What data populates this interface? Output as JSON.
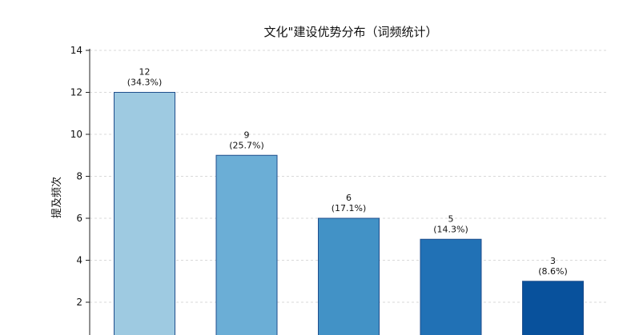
{
  "header_fragment": "",
  "chart_data": {
    "type": "bar",
    "title": "文化\"建设优势分布（词频统计）",
    "xlabel": "",
    "ylabel": "提及频次",
    "categories": [
      "",
      "",
      "",
      "",
      ""
    ],
    "values": [
      12,
      9,
      6,
      5,
      3
    ],
    "value_labels": [
      "12",
      "9",
      "6",
      "5",
      "3"
    ],
    "percent_labels": [
      "(34.3%)",
      "(25.7%)",
      "(17.1%)",
      "(14.3%)",
      "(8.6%)"
    ],
    "ylim": [
      0,
      14
    ],
    "yticks": [
      "2",
      "4",
      "6",
      "8",
      "10",
      "12",
      "14"
    ],
    "grid": true,
    "colors": [
      "#9ecae1",
      "#6baed6",
      "#4292c6",
      "#2171b5",
      "#08519c"
    ],
    "edge_color": "#1f4e8c"
  }
}
